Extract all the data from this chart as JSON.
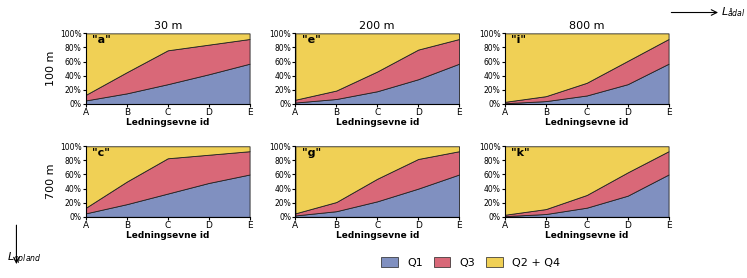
{
  "col_labels": [
    "30 m",
    "200 m",
    "800 m"
  ],
  "row_labels": [
    "100 m",
    "700 m"
  ],
  "subplot_labels": [
    [
      "\"a\"",
      "\"e\"",
      "\"i\""
    ],
    [
      "\"c\"",
      "\"g\"",
      "\"k\""
    ]
  ],
  "x_ticks": [
    "A",
    "B",
    "C",
    "D",
    "E"
  ],
  "xlabel": "Ledningsevne id",
  "colors": {
    "Q1": "#8090c0",
    "Q3": "#d96878",
    "Q2Q4": "#f0d055"
  },
  "ylim": [
    0,
    100
  ],
  "data": {
    "a": {
      "Q1": [
        5,
        15,
        28,
        42,
        57
      ],
      "Q3": [
        8,
        30,
        48,
        42,
        35
      ],
      "Q2Q4": [
        87,
        55,
        24,
        16,
        8
      ]
    },
    "e": {
      "Q1": [
        2,
        7,
        18,
        35,
        57
      ],
      "Q3": [
        4,
        12,
        28,
        42,
        35
      ],
      "Q2Q4": [
        94,
        81,
        54,
        23,
        8
      ]
    },
    "i": {
      "Q1": [
        1,
        4,
        12,
        28,
        57
      ],
      "Q3": [
        2,
        7,
        18,
        33,
        35
      ],
      "Q2Q4": [
        97,
        89,
        70,
        39,
        8
      ]
    },
    "c": {
      "Q1": [
        5,
        18,
        33,
        48,
        60
      ],
      "Q3": [
        8,
        32,
        50,
        40,
        33
      ],
      "Q2Q4": [
        87,
        50,
        17,
        12,
        7
      ]
    },
    "g": {
      "Q1": [
        2,
        8,
        22,
        40,
        60
      ],
      "Q3": [
        3,
        13,
        32,
        42,
        33
      ],
      "Q2Q4": [
        95,
        79,
        46,
        18,
        7
      ]
    },
    "k": {
      "Q1": [
        1,
        4,
        13,
        30,
        60
      ],
      "Q3": [
        2,
        7,
        18,
        33,
        33
      ],
      "Q2Q4": [
        97,
        89,
        69,
        37,
        7
      ]
    }
  }
}
